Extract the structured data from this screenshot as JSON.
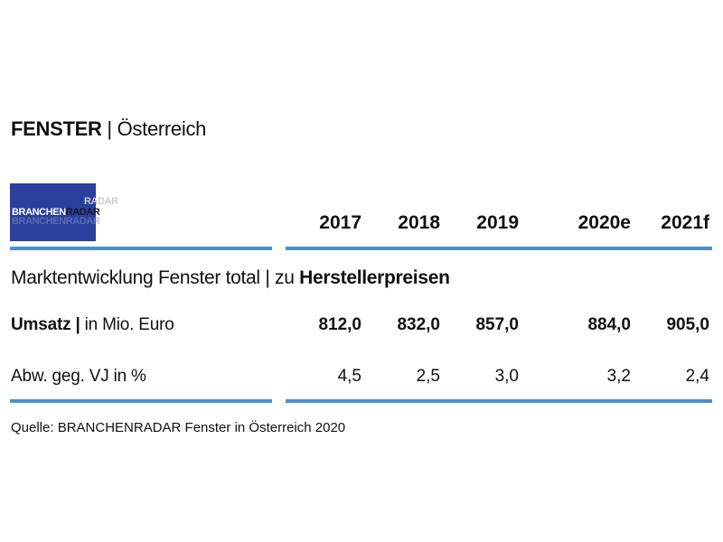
{
  "title": {
    "bold": "FENSTER",
    "sep": " | ",
    "rest": "Österreich"
  },
  "logo": {
    "text_a": "BRANCHEN",
    "text_b": "RADAR",
    "alt_text": "BRANCHENRADAR",
    "mirror_text": "RADAR"
  },
  "years": [
    "2017",
    "2018",
    "2019",
    "2020e",
    "2021f"
  ],
  "section": {
    "normal": "Marktentwicklung Fenster total | zu ",
    "bold": "Herstellerpreisen"
  },
  "rows": [
    {
      "label_bold": "Umsatz |",
      "label_rest": " in Mio. Euro",
      "values": [
        "812,0",
        "832,0",
        "857,0",
        "884,0",
        "905,0"
      ]
    },
    {
      "label": "Abw. geg. VJ in %",
      "values": [
        "4,5",
        "2,5",
        "3,0",
        "3,2",
        "2,4"
      ]
    }
  ],
  "source": "Quelle: BRANCHENRADAR Fenster in Österreich 2020",
  "colors": {
    "rule": "#4a8fd0",
    "logo_bg": "#2a3f9e"
  }
}
